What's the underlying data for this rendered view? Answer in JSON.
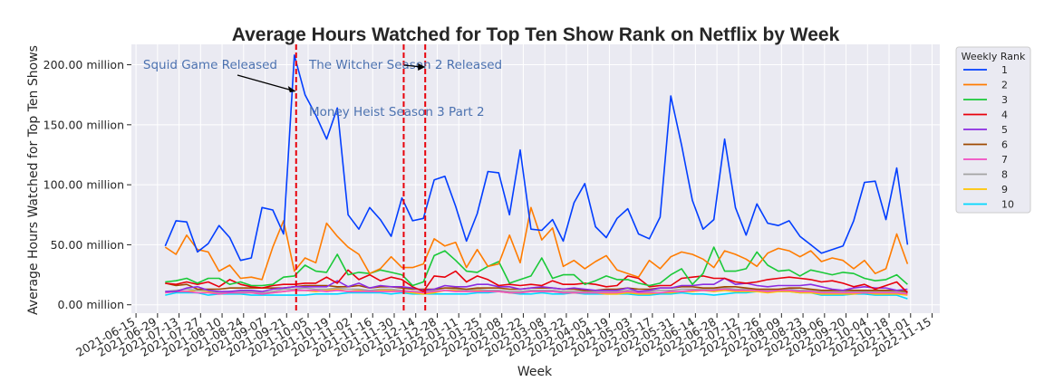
{
  "chart_data": {
    "type": "line",
    "title": "Average Hours Watched for Top Ten Show Rank on Netflix by Week",
    "xlabel": "Week",
    "ylabel": "Average Hours Watched for Top Ten Shows",
    "ylim": [
      -7,
      217
    ],
    "y_ticks": [
      0,
      50,
      100,
      150,
      200
    ],
    "y_tick_labels": [
      "0.00 million",
      "50.00 million",
      "100.00 million",
      "150.00 million",
      "200.00 million"
    ],
    "x_range": [
      "2021-06-12",
      "2022-11-20"
    ],
    "x_tick_labels": [
      "2021-06-15",
      "2021-06-29",
      "2021-07-13",
      "2021-07-27",
      "2021-08-10",
      "2021-08-24",
      "2021-09-07",
      "2021-09-21",
      "2021-10-05",
      "2021-10-19",
      "2021-11-02",
      "2021-11-16",
      "2021-11-30",
      "2021-12-14",
      "2021-12-28",
      "2022-01-11",
      "2022-01-25",
      "2022-02-08",
      "2022-02-22",
      "2022-03-08",
      "2022-03-22",
      "2022-04-05",
      "2022-04-19",
      "2022-05-03",
      "2022-05-17",
      "2022-05-31",
      "2022-06-14",
      "2022-06-28",
      "2022-07-12",
      "2022-07-26",
      "2022-08-09",
      "2022-08-23",
      "2022-09-06",
      "2022-09-20",
      "2022-10-04",
      "2022-10-18",
      "2022-11-01",
      "2022-11-15"
    ],
    "grid": true,
    "legend": {
      "title": "Weekly Rank",
      "placement": "outside-top-right"
    },
    "background_color": "#eaeaf2",
    "x": [
      "2021-07-04",
      "2021-07-11",
      "2021-07-18",
      "2021-07-25",
      "2021-08-01",
      "2021-08-08",
      "2021-08-15",
      "2021-08-22",
      "2021-08-29",
      "2021-09-05",
      "2021-09-12",
      "2021-09-19",
      "2021-09-26",
      "2021-10-03",
      "2021-10-10",
      "2021-10-17",
      "2021-10-24",
      "2021-10-31",
      "2021-11-07",
      "2021-11-14",
      "2021-11-21",
      "2021-11-28",
      "2021-12-05",
      "2021-12-12",
      "2021-12-19",
      "2021-12-26",
      "2022-01-02",
      "2022-01-09",
      "2022-01-16",
      "2022-01-23",
      "2022-01-30",
      "2022-02-06",
      "2022-02-13",
      "2022-02-20",
      "2022-02-27",
      "2022-03-06",
      "2022-03-13",
      "2022-03-20",
      "2022-03-27",
      "2022-04-03",
      "2022-04-10",
      "2022-04-17",
      "2022-04-24",
      "2022-05-01",
      "2022-05-08",
      "2022-05-15",
      "2022-05-22",
      "2022-05-29",
      "2022-06-05",
      "2022-06-12",
      "2022-06-19",
      "2022-06-26",
      "2022-07-03",
      "2022-07-10",
      "2022-07-17",
      "2022-07-24",
      "2022-07-31",
      "2022-08-07",
      "2022-08-14",
      "2022-08-21",
      "2022-08-28",
      "2022-09-04",
      "2022-09-11",
      "2022-09-18",
      "2022-09-25",
      "2022-10-02",
      "2022-10-09",
      "2022-10-16",
      "2022-10-23",
      "2022-10-30"
    ],
    "series": [
      {
        "name": "1",
        "color": "#023eff",
        "values": [
          49,
          70,
          69,
          44,
          51,
          66,
          56,
          37,
          39,
          81,
          79,
          59,
          208,
          175,
          158,
          138,
          164,
          75,
          63,
          81,
          71,
          57,
          89,
          70,
          72,
          104,
          107,
          82,
          53,
          76,
          111,
          110,
          75,
          129,
          63,
          62,
          71,
          53,
          85,
          101,
          65,
          56,
          72,
          80,
          59,
          55,
          73,
          174,
          133,
          87,
          63,
          71,
          138,
          81,
          58,
          84,
          68,
          66,
          70,
          57,
          50,
          43,
          46,
          49,
          70,
          102,
          103,
          71,
          114,
          50
        ]
      },
      {
        "name": "2",
        "color": "#ff7c00",
        "values": [
          48,
          42,
          58,
          46,
          44,
          28,
          33,
          22,
          23,
          21,
          48,
          70,
          28,
          39,
          35,
          68,
          57,
          48,
          42,
          26,
          30,
          40,
          31,
          31,
          34,
          55,
          49,
          52,
          31,
          46,
          32,
          34,
          58,
          35,
          81,
          54,
          64,
          32,
          37,
          30,
          36,
          41,
          29,
          26,
          23,
          37,
          30,
          40,
          44,
          42,
          38,
          31,
          45,
          42,
          38,
          32,
          43,
          47,
          45,
          40,
          45,
          36,
          39,
          37,
          30,
          37,
          26,
          30,
          59,
          34
        ]
      },
      {
        "name": "3",
        "color": "#1ac938",
        "values": [
          19,
          20,
          22,
          18,
          22,
          22,
          17,
          19,
          16,
          16,
          17,
          23,
          24,
          33,
          28,
          27,
          42,
          25,
          27,
          26,
          29,
          27,
          25,
          16,
          19,
          41,
          45,
          37,
          28,
          27,
          32,
          36,
          18,
          21,
          24,
          39,
          22,
          25,
          25,
          17,
          20,
          24,
          21,
          21,
          18,
          16,
          18,
          25,
          30,
          17,
          26,
          48,
          28,
          28,
          30,
          44,
          33,
          28,
          29,
          24,
          29,
          27,
          25,
          27,
          26,
          22,
          20,
          21,
          25,
          17
        ]
      },
      {
        "name": "4",
        "color": "#e8000b",
        "values": [
          18,
          17,
          19,
          17,
          19,
          15,
          21,
          17,
          15,
          14,
          16,
          17,
          17,
          18,
          18,
          23,
          18,
          29,
          21,
          25,
          20,
          23,
          21,
          15,
          11,
          24,
          23,
          28,
          19,
          24,
          21,
          16,
          17,
          16,
          17,
          16,
          20,
          17,
          17,
          18,
          17,
          15,
          16,
          24,
          22,
          15,
          16,
          16,
          22,
          23,
          24,
          22,
          22,
          19,
          18,
          19,
          21,
          22,
          23,
          22,
          21,
          19,
          20,
          18,
          15,
          17,
          13,
          16,
          19,
          10
        ]
      },
      {
        "name": "5",
        "color": "#8b2be2",
        "values": [
          11,
          11,
          14,
          15,
          12,
          11,
          11,
          12,
          12,
          11,
          13,
          14,
          15,
          15,
          15,
          15,
          20,
          15,
          18,
          14,
          16,
          15,
          15,
          14,
          12,
          13,
          16,
          15,
          15,
          17,
          17,
          15,
          15,
          13,
          14,
          15,
          14,
          13,
          14,
          13,
          12,
          12,
          12,
          14,
          11,
          12,
          14,
          14,
          16,
          16,
          17,
          17,
          22,
          17,
          18,
          16,
          15,
          16,
          16,
          16,
          17,
          15,
          13,
          12,
          14,
          15,
          14,
          14,
          12,
          13
        ]
      },
      {
        "name": "6",
        "color": "#9f4800",
        "values": [
          18,
          16,
          17,
          13,
          13,
          13,
          14,
          14,
          14,
          14,
          14,
          14,
          15,
          16,
          16,
          16,
          15,
          15,
          16,
          14,
          15,
          15,
          14,
          13,
          13,
          13,
          14,
          14,
          13,
          14,
          14,
          14,
          13,
          13,
          14,
          14,
          14,
          13,
          13,
          12,
          12,
          13,
          13,
          14,
          13,
          13,
          14,
          14,
          15,
          15,
          14,
          14,
          15,
          15,
          14,
          13,
          13,
          13,
          14,
          14,
          13,
          12,
          12,
          12,
          12,
          12,
          12,
          12,
          12,
          11
        ]
      },
      {
        "name": "7",
        "color": "#f14cc1",
        "values": [
          10,
          11,
          11,
          10,
          10,
          9,
          10,
          10,
          10,
          9,
          10,
          11,
          12,
          12,
          12,
          11,
          12,
          11,
          11,
          11,
          11,
          11,
          11,
          11,
          10,
          11,
          12,
          11,
          11,
          11,
          11,
          11,
          10,
          10,
          11,
          11,
          11,
          10,
          10,
          10,
          10,
          10,
          10,
          11,
          10,
          10,
          10,
          11,
          11,
          12,
          12,
          12,
          13,
          12,
          12,
          12,
          11,
          12,
          12,
          11,
          11,
          10,
          10,
          10,
          10,
          10,
          10,
          10,
          10,
          9
        ]
      },
      {
        "name": "8",
        "color": "#a3a3a3",
        "values": [
          11,
          12,
          13,
          12,
          12,
          10,
          11,
          11,
          11,
          10,
          11,
          13,
          13,
          14,
          13,
          13,
          14,
          13,
          13,
          12,
          13,
          13,
          12,
          11,
          11,
          12,
          14,
          13,
          12,
          13,
          12,
          12,
          11,
          11,
          12,
          12,
          12,
          11,
          11,
          11,
          11,
          11,
          11,
          12,
          11,
          11,
          12,
          12,
          13,
          13,
          13,
          13,
          14,
          13,
          13,
          13,
          12,
          13,
          13,
          12,
          12,
          11,
          11,
          11,
          11,
          11,
          11,
          11,
          11,
          10
        ]
      },
      {
        "name": "9",
        "color": "#ffc400",
        "values": [
          10,
          11,
          11,
          12,
          11,
          9,
          10,
          10,
          10,
          9,
          10,
          11,
          12,
          12,
          11,
          12,
          13,
          11,
          12,
          11,
          12,
          12,
          11,
          10,
          9,
          10,
          12,
          12,
          11,
          12,
          11,
          11,
          10,
          10,
          11,
          11,
          11,
          10,
          10,
          10,
          10,
          9,
          9,
          10,
          9,
          9,
          10,
          10,
          11,
          11,
          12,
          11,
          12,
          11,
          11,
          11,
          10,
          11,
          11,
          10,
          10,
          9,
          9,
          9,
          9,
          10,
          9,
          9,
          9,
          8
        ]
      },
      {
        "name": "10",
        "color": "#00d7ff",
        "values": [
          8,
          10,
          10,
          10,
          8,
          9,
          9,
          9,
          8,
          8,
          8,
          8,
          8,
          8,
          9,
          9,
          9,
          10,
          10,
          10,
          10,
          9,
          10,
          9,
          9,
          9,
          9,
          9,
          9,
          10,
          10,
          11,
          10,
          9,
          9,
          10,
          9,
          9,
          10,
          9,
          9,
          9,
          9,
          9,
          8,
          8,
          9,
          9,
          10,
          9,
          9,
          8,
          9,
          10,
          10,
          11,
          11,
          11,
          11,
          10,
          10,
          8,
          8,
          8,
          9,
          9,
          8,
          8,
          8,
          5
        ]
      }
    ],
    "annotations": [
      {
        "text": "Squid Game Released",
        "date": "2021-09-26"
      },
      {
        "text": "The Witcher Season 2 Released",
        "date": "2021-12-19"
      },
      {
        "text": "Money Heist Season 3 Part 2",
        "date": "2021-12-05"
      }
    ],
    "vlines": [
      "2021-09-26",
      "2021-12-05",
      "2021-12-19"
    ]
  }
}
